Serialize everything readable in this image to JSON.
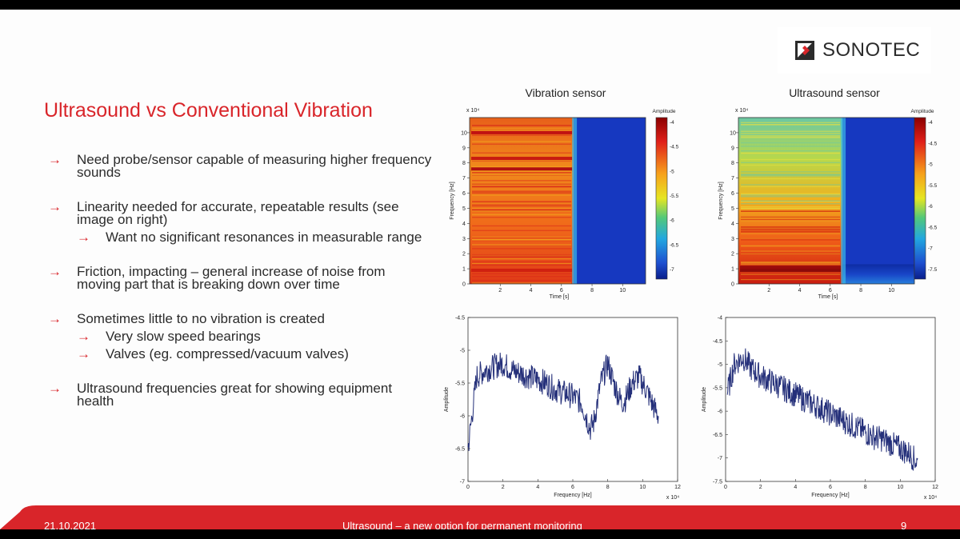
{
  "logo": {
    "name": "SONOTEC"
  },
  "slide_title": "Ultrasound vs Conventional Vibration",
  "bullets": {
    "b1": "Need probe/sensor capable of measuring higher frequency sounds",
    "b2": "Linearity needed for accurate, repeatable results (see image on right)",
    "b2_sub1": "Want no significant resonances in measurable range",
    "b3": "Friction, impacting – general increase of noise from moving part that is breaking down over time",
    "b4": "Sometimes little to no vibration is created",
    "b4_sub1": "Very slow speed bearings",
    "b4_sub2": "Valves (eg. compressed/vacuum valves)",
    "b5": "Ultrasound frequencies great for showing equipment health",
    "arrow": "→"
  },
  "footer": {
    "date": "21.10.2021",
    "center": "Ultrasound – a new option for permanent monitoring",
    "page": "9"
  },
  "colors": {
    "accent": "#d9252a",
    "plot_line": "#25307a"
  },
  "chart_data": [
    {
      "type": "heatmap",
      "title": "Vibration sensor",
      "xlabel": "Time [s]",
      "ylabel": "Frequency [Hz]",
      "y_multiplier": "x 10⁴",
      "x_ticks": [
        "2",
        "4",
        "6",
        "8",
        "10"
      ],
      "y_ticks": [
        "0",
        "1",
        "2",
        "3",
        "4",
        "5",
        "6",
        "7",
        "8",
        "9",
        "10"
      ],
      "colorbar_label": "Amplitude",
      "colorbar_ticks": [
        "-4",
        "-4.5",
        "-5",
        "-5.5",
        "-6",
        "-6.5",
        "-7"
      ],
      "active_time_range": [
        0,
        6.8
      ],
      "y_range": [
        0,
        11
      ]
    },
    {
      "type": "heatmap",
      "title": "Ultrasound sensor",
      "xlabel": "Time [s]",
      "ylabel": "Frequency [Hz]",
      "y_multiplier": "x 10⁴",
      "x_ticks": [
        "2",
        "4",
        "6",
        "8",
        "10"
      ],
      "y_ticks": [
        "0",
        "1",
        "2",
        "3",
        "4",
        "5",
        "6",
        "7",
        "8",
        "9",
        "10"
      ],
      "colorbar_label": "Amplitude",
      "colorbar_ticks": [
        "-4",
        "-4.5",
        "-5",
        "-5.5",
        "-6",
        "-6.5",
        "-7",
        "-7.5"
      ],
      "active_time_range": [
        0,
        6.8
      ],
      "y_range": [
        0,
        11
      ]
    },
    {
      "type": "line",
      "xlabel": "Frequency [Hz]",
      "ylabel": "Amplitude",
      "x_multiplier": "x 10⁴",
      "x_ticks": [
        "0",
        "2",
        "4",
        "6",
        "8",
        "10",
        "12"
      ],
      "y_ticks": [
        "-4.5",
        "-5",
        "-5.5",
        "-6",
        "-6.5",
        "-7"
      ],
      "xlim": [
        0,
        12
      ],
      "ylim": [
        -7,
        -4.5
      ],
      "x": [
        0,
        0.5,
        1,
        1.5,
        2,
        2.5,
        3,
        3.5,
        4,
        4.5,
        5,
        5.5,
        6,
        6.5,
        7,
        7.2,
        7.6,
        8,
        8.4,
        8.8,
        9,
        9.4,
        9.8,
        10.2,
        10.6,
        10.9
      ],
      "y": [
        -6.5,
        -5.4,
        -5.3,
        -5.25,
        -5.2,
        -5.3,
        -5.35,
        -5.4,
        -5.45,
        -5.5,
        -5.6,
        -5.65,
        -5.7,
        -5.8,
        -6.2,
        -6.1,
        -5.5,
        -5.2,
        -5.55,
        -5.8,
        -5.75,
        -5.5,
        -5.4,
        -5.6,
        -5.85,
        -6.0
      ]
    },
    {
      "type": "line",
      "xlabel": "Frequency [Hz]",
      "ylabel": "Amplitude",
      "x_multiplier": "x 10⁴",
      "x_ticks": [
        "0",
        "2",
        "4",
        "6",
        "8",
        "10",
        "12"
      ],
      "y_ticks": [
        "-4",
        "-4.5",
        "-5",
        "-5.5",
        "-6",
        "-6.5",
        "-7",
        "-7.5"
      ],
      "xlim": [
        0,
        12
      ],
      "ylim": [
        -7.5,
        -4
      ],
      "x": [
        0.1,
        0.5,
        1,
        1.5,
        2,
        2.5,
        3,
        3.5,
        4,
        4.5,
        5,
        5.5,
        6,
        6.5,
        7,
        7.5,
        8,
        8.5,
        9,
        9.5,
        10,
        10.5,
        11
      ],
      "y": [
        -5.6,
        -5.0,
        -4.85,
        -5.1,
        -5.25,
        -5.35,
        -5.45,
        -5.55,
        -5.65,
        -5.75,
        -5.85,
        -5.95,
        -6.05,
        -6.15,
        -6.25,
        -6.35,
        -6.45,
        -6.55,
        -6.6,
        -6.7,
        -6.8,
        -6.9,
        -7.1
      ]
    }
  ]
}
